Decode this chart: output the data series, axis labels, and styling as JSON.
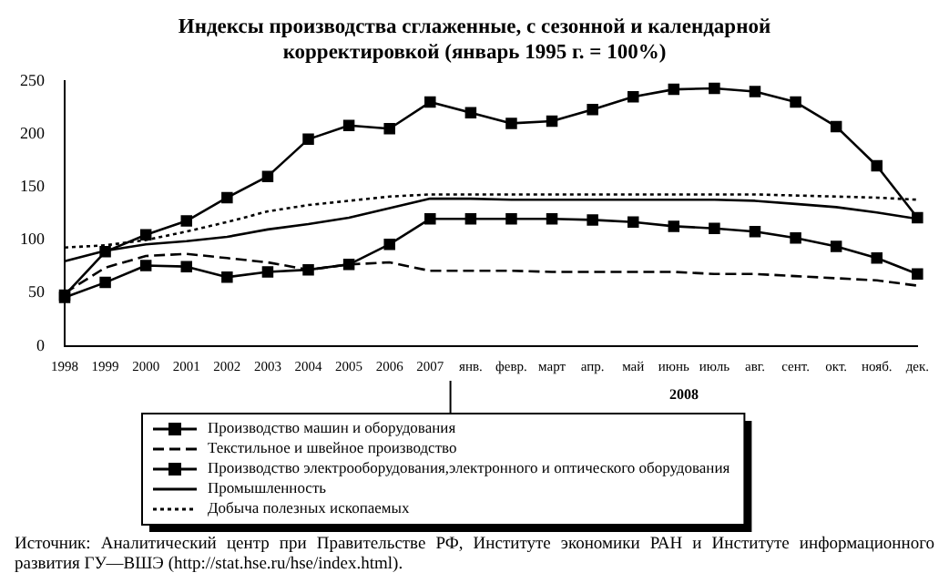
{
  "chart_data": {
    "type": "line",
    "title": "Индексы производства сглаженные, с сезонной и календарной корректировкой (январь 1995 г. = 100%)",
    "categories": [
      "1998",
      "1999",
      "2000",
      "2001",
      "2002",
      "2003",
      "2004",
      "2005",
      "2006",
      "2007",
      "янв.",
      "февр.",
      "март",
      "апр.",
      "май",
      "июнь",
      "июль",
      "авг.",
      "сент.",
      "окт.",
      "нояб.",
      "дек."
    ],
    "series": [
      {
        "name": "Производство машин и оборудования",
        "color": "#000000",
        "marker": "square",
        "line_style": "solid",
        "values": [
          46,
          60,
          76,
          75,
          65,
          70,
          72,
          77,
          96,
          120,
          120,
          120,
          120,
          119,
          117,
          113,
          111,
          108,
          102,
          94,
          83,
          68
        ]
      },
      {
        "name": "Текстильное и швейное производство",
        "color": "#000000",
        "marker": "none",
        "line_style": "dashed",
        "values": [
          50,
          74,
          85,
          87,
          83,
          79,
          72,
          77,
          79,
          71,
          71,
          71,
          70,
          70,
          70,
          70,
          68,
          68,
          66,
          64,
          62,
          57
        ]
      },
      {
        "name": "Производство электрооборудования,электронного и оптического оборудования",
        "color": "#000000",
        "marker": "square",
        "line_style": "solid",
        "values": [
          48,
          89,
          105,
          118,
          140,
          160,
          195,
          208,
          205,
          230,
          220,
          210,
          212,
          223,
          235,
          242,
          243,
          240,
          230,
          207,
          170,
          121
        ]
      },
      {
        "name": "Промышленность",
        "color": "#000000",
        "marker": "none",
        "line_style": "solid",
        "values": [
          80,
          90,
          96,
          99,
          103,
          110,
          115,
          121,
          130,
          139,
          139,
          138,
          138,
          138,
          138,
          138,
          138,
          137,
          134,
          131,
          126,
          120
        ]
      },
      {
        "name": "Добыча полезных ископаемых",
        "color": "#000000",
        "marker": "none",
        "line_style": "dotted",
        "values": [
          93,
          95,
          100,
          108,
          117,
          127,
          133,
          137,
          141,
          143,
          143,
          143,
          143,
          143,
          143,
          143,
          143,
          143,
          142,
          141,
          140,
          138
        ]
      }
    ],
    "ylim": [
      0,
      250
    ],
    "yticks": [
      0,
      50,
      100,
      150,
      200,
      250
    ],
    "grid": false,
    "legend": "bottom",
    "annotations": [
      "2008",
      "Источник: Аналитический центр при Правительстве РФ, Институте экономики РАН и Институте информационного развития ГУ—ВШЭ (http://stat.hse.ru/hse/index.html)."
    ]
  }
}
